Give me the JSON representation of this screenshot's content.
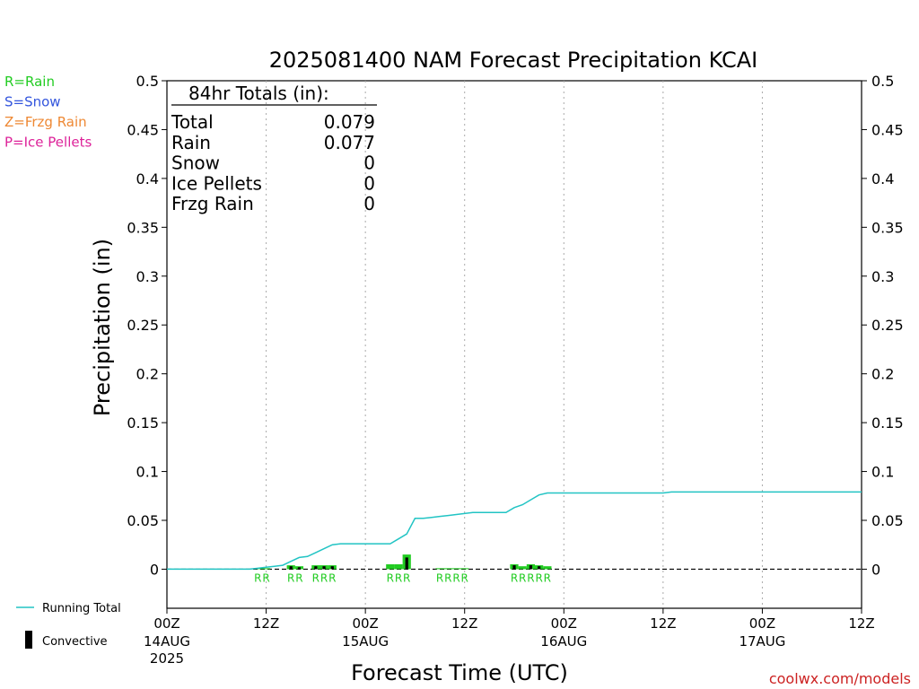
{
  "chart_data": {
    "type": "bar",
    "title": "2025081400 NAM Forecast Precipitation KCAI",
    "xlabel": "Forecast Time (UTC)",
    "ylabel": "Precipitation (in)",
    "ylim": [
      -0.04,
      0.5
    ],
    "yticks": [
      "0.5",
      "0.45",
      "0.4",
      "0.35",
      "0.3",
      "0.25",
      "0.2",
      "0.15",
      "0.1",
      "0.05",
      "0"
    ],
    "ytick_values": [
      0.5,
      0.45,
      0.4,
      0.35,
      0.3,
      0.25,
      0.2,
      0.15,
      0.1,
      0.05,
      0
    ],
    "xlim": [
      0,
      84
    ],
    "grid": "vertical dotted",
    "x_ticks": [
      {
        "hour": 0,
        "label": "00Z",
        "date": "14AUG",
        "year": "2025"
      },
      {
        "hour": 12,
        "label": "12Z",
        "date": "",
        "year": ""
      },
      {
        "hour": 24,
        "label": "00Z",
        "date": "15AUG",
        "year": ""
      },
      {
        "hour": 36,
        "label": "12Z",
        "date": "",
        "year": ""
      },
      {
        "hour": 48,
        "label": "00Z",
        "date": "16AUG",
        "year": ""
      },
      {
        "hour": 60,
        "label": "12Z",
        "date": "",
        "year": ""
      },
      {
        "hour": 72,
        "label": "00Z",
        "date": "17AUG",
        "year": ""
      },
      {
        "hour": 84,
        "label": "12Z",
        "date": "",
        "year": ""
      }
    ],
    "bars": [
      {
        "hour": 11,
        "value": 0.001,
        "type": "R",
        "convective": 0
      },
      {
        "hour": 12,
        "value": 0.001,
        "type": "R",
        "convective": 0
      },
      {
        "hour": 15,
        "value": 0.004,
        "type": "R",
        "convective": 0.003
      },
      {
        "hour": 16,
        "value": 0.003,
        "type": "R",
        "convective": 0.002
      },
      {
        "hour": 18,
        "value": 0.004,
        "type": "R",
        "convective": 0.003
      },
      {
        "hour": 19,
        "value": 0.004,
        "type": "R",
        "convective": 0.003
      },
      {
        "hour": 20,
        "value": 0.004,
        "type": "R",
        "convective": 0.003
      },
      {
        "hour": 27,
        "value": 0.005,
        "type": "R",
        "convective": 0
      },
      {
        "hour": 28,
        "value": 0.005,
        "type": "R",
        "convective": 0
      },
      {
        "hour": 29,
        "value": 0.015,
        "type": "R",
        "convective": 0.012
      },
      {
        "hour": 33,
        "value": 0.001,
        "type": "R",
        "convective": 0
      },
      {
        "hour": 34,
        "value": 0.001,
        "type": "R",
        "convective": 0
      },
      {
        "hour": 35,
        "value": 0.001,
        "type": "R",
        "convective": 0
      },
      {
        "hour": 36,
        "value": 0.001,
        "type": "R",
        "convective": 0
      },
      {
        "hour": 42,
        "value": 0.005,
        "type": "R",
        "convective": 0.004
      },
      {
        "hour": 43,
        "value": 0.003,
        "type": "R",
        "convective": 0
      },
      {
        "hour": 44,
        "value": 0.005,
        "type": "R",
        "convective": 0.004
      },
      {
        "hour": 45,
        "value": 0.004,
        "type": "R",
        "convective": 0.003
      },
      {
        "hour": 46,
        "value": 0.003,
        "type": "R",
        "convective": 0
      }
    ],
    "running_total": [
      [
        0,
        0
      ],
      [
        10,
        0
      ],
      [
        11,
        0.001
      ],
      [
        12,
        0.002
      ],
      [
        13,
        0.003
      ],
      [
        14,
        0.004
      ],
      [
        15,
        0.008
      ],
      [
        16,
        0.012
      ],
      [
        17,
        0.013
      ],
      [
        18,
        0.017
      ],
      [
        19,
        0.021
      ],
      [
        20,
        0.025
      ],
      [
        21,
        0.026
      ],
      [
        24,
        0.026
      ],
      [
        27,
        0.026
      ],
      [
        28,
        0.031
      ],
      [
        29,
        0.036
      ],
      [
        30,
        0.052
      ],
      [
        31,
        0.052
      ],
      [
        32,
        0.053
      ],
      [
        33,
        0.054
      ],
      [
        34,
        0.055
      ],
      [
        35,
        0.056
      ],
      [
        36,
        0.057
      ],
      [
        37,
        0.058
      ],
      [
        41,
        0.058
      ],
      [
        42,
        0.063
      ],
      [
        43,
        0.066
      ],
      [
        44,
        0.071
      ],
      [
        45,
        0.076
      ],
      [
        46,
        0.078
      ],
      [
        47,
        0.078
      ],
      [
        60,
        0.078
      ],
      [
        61,
        0.079
      ],
      [
        84,
        0.079
      ]
    ],
    "rain_markers": [
      {
        "hour": 11
      },
      {
        "hour": 12
      },
      {
        "hour": 15
      },
      {
        "hour": 16
      },
      {
        "hour": 18
      },
      {
        "hour": 19
      },
      {
        "hour": 20
      },
      {
        "hour": 27
      },
      {
        "hour": 28
      },
      {
        "hour": 29
      },
      {
        "hour": 33
      },
      {
        "hour": 34
      },
      {
        "hour": 35
      },
      {
        "hour": 36
      },
      {
        "hour": 42
      },
      {
        "hour": 43
      },
      {
        "hour": 44
      },
      {
        "hour": 45
      },
      {
        "hour": 46
      }
    ],
    "marker_letter": "R",
    "totals_heading": "84hr Totals (in):",
    "totals": [
      {
        "label": "Total",
        "value": "0.079"
      },
      {
        "label": "Rain",
        "value": "0.077"
      },
      {
        "label": "Snow",
        "value": "0"
      },
      {
        "label": "Ice Pellets",
        "value": "0"
      },
      {
        "label": "Frzg Rain",
        "value": "0"
      }
    ],
    "type_legend": [
      {
        "text": "R=Rain",
        "color": "#22cc22"
      },
      {
        "text": "S=Snow",
        "color": "#3355dd"
      },
      {
        "text": "Z=Frzg Rain",
        "color": "#ee8833"
      },
      {
        "text": "P=Ice Pellets",
        "color": "#dd2299"
      }
    ],
    "series_legend": [
      {
        "text": "Running Total",
        "color": "#22c4c4"
      },
      {
        "text": "Convective",
        "color": "#000000"
      }
    ],
    "colors": {
      "rain": "#22cc22",
      "convective": "#000000",
      "running_total": "#22c4c4"
    },
    "credit": "coolwx.com/models"
  }
}
